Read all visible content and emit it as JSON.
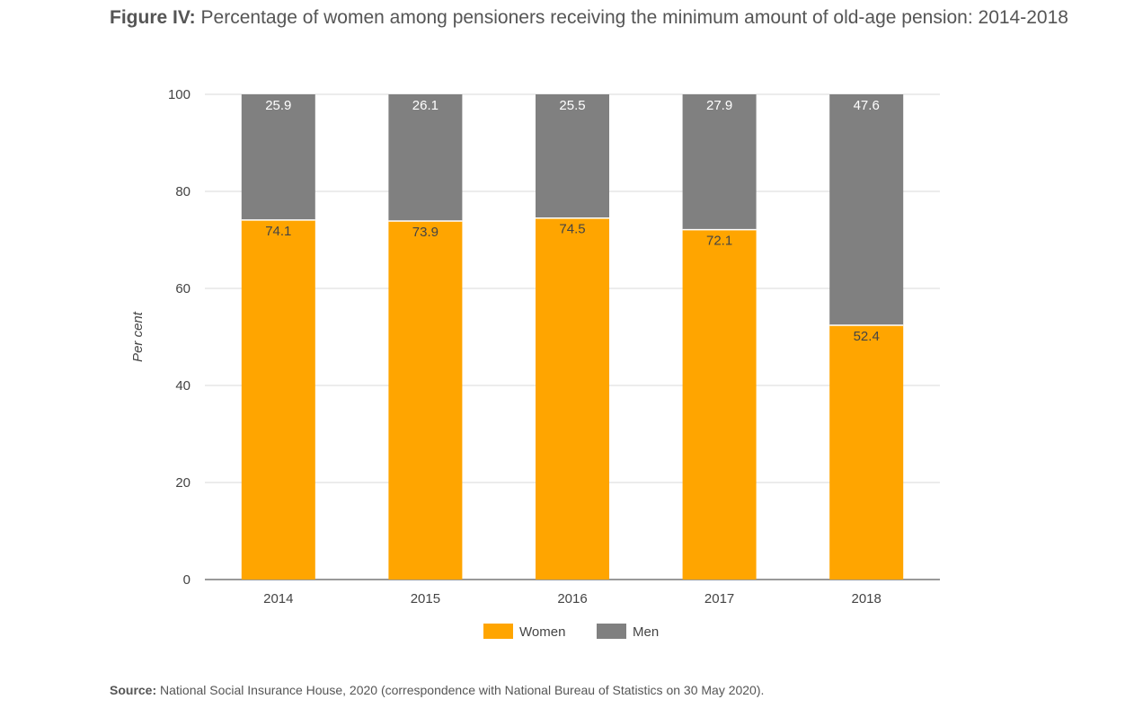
{
  "figure": {
    "label": "Figure IV:",
    "title": "Percentage of women among pensioners receiving the minimum amount of old-age pension: 2014-2018"
  },
  "source": {
    "label": "Source:",
    "text": "National Social Insurance House, 2020 (correspondence with National Bureau of Statistics on 30 May 2020)."
  },
  "chart_data": {
    "type": "bar",
    "stacked": true,
    "categories": [
      "2014",
      "2015",
      "2016",
      "2017",
      "2018"
    ],
    "series": [
      {
        "name": "Women",
        "values": [
          74.1,
          73.9,
          74.5,
          72.1,
          52.4
        ],
        "color": "#FFA500",
        "label_color": "#444444"
      },
      {
        "name": "Men",
        "values": [
          25.9,
          26.1,
          25.5,
          27.9,
          47.6
        ],
        "color": "#808080",
        "label_color": "#ffffff"
      }
    ],
    "ylabel": "Per cent",
    "ylim": [
      0,
      100
    ],
    "yticks": [
      0,
      20,
      40,
      60,
      80,
      100
    ],
    "grid": true,
    "legend": "bottom"
  }
}
